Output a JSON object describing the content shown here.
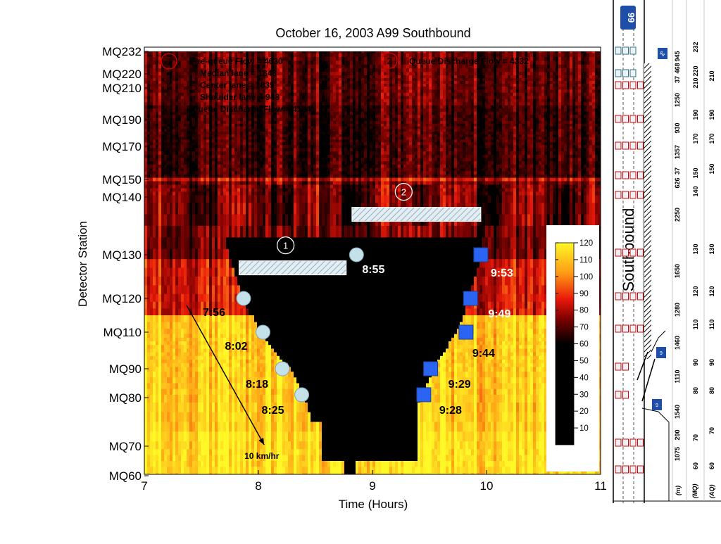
{
  "chart_data": {
    "type": "heatmap",
    "title": "October 16, 2003 A99 Southbound",
    "xlabel": "Time (Hours)",
    "ylabel": "Detector Station",
    "xlim": [
      7,
      11
    ],
    "x_ticks": [
      7,
      8,
      9,
      10,
      11
    ],
    "y_ticks": [
      {
        "label": "MQ232",
        "pos": 232
      },
      {
        "label": "MQ220",
        "pos": 220
      },
      {
        "label": "MQ210",
        "pos": 210
      },
      {
        "label": "MQ190",
        "pos": 190
      },
      {
        "label": "MQ170",
        "pos": 170
      },
      {
        "label": "MQ150",
        "pos": 150
      },
      {
        "label": "MQ140",
        "pos": 140
      },
      {
        "label": "MQ130",
        "pos": 130
      },
      {
        "label": "MQ120",
        "pos": 120
      },
      {
        "label": "MQ110",
        "pos": 110
      },
      {
        "label": "MQ90",
        "pos": 90
      },
      {
        "label": "MQ80",
        "pos": 80
      },
      {
        "label": "MQ70",
        "pos": 70
      },
      {
        "label": "MQ60",
        "pos": 60
      }
    ],
    "colorbar": {
      "min": 0,
      "max": 120,
      "ticks": [
        10,
        20,
        30,
        40,
        50,
        60,
        70,
        80,
        90,
        100,
        110,
        120
      ]
    },
    "notes": {
      "marker1": "1",
      "marker2": "2",
      "pre_queue": "Pre-queue Flow = 4630",
      "median": "Median lane = 1848",
      "center": "Center lane = 1835",
      "shoulder": "Shoulder lane = 948",
      "qd1": "Queue Discharge Flow = 4134",
      "qd2": "Queue Discharge Flow = 4332",
      "speed": "10 km/hr"
    },
    "queue_onset": [
      {
        "time": 7.87,
        "station": 120,
        "label": "7:56"
      },
      {
        "time": 8.04,
        "station": 110,
        "label": "8:02"
      },
      {
        "time": 8.21,
        "station": 90,
        "label": "8:18"
      },
      {
        "time": 8.38,
        "station": 81,
        "label": "8:25"
      },
      {
        "time": 8.86,
        "station": 130,
        "label": "8:55"
      }
    ],
    "queue_discharge": [
      {
        "time": 9.45,
        "station": 81,
        "label": "9:28"
      },
      {
        "time": 9.51,
        "station": 90,
        "label": "9:29"
      },
      {
        "time": 9.82,
        "station": 110,
        "label": "9:44"
      },
      {
        "time": 9.86,
        "station": 120,
        "label": "9:49"
      },
      {
        "time": 9.95,
        "station": 130,
        "label": "9:53"
      }
    ],
    "bars": [
      {
        "x0": 7.83,
        "x1": 8.77,
        "station": 127,
        "label": "1"
      },
      {
        "x0": 8.82,
        "x1": 9.95,
        "station": 137,
        "label": "2"
      }
    ],
    "speed_arrow": {
      "from": [
        7.37,
        118
      ],
      "to": [
        8.05,
        70
      ]
    }
  },
  "side_panel": {
    "route": "99",
    "direction": "Southbound",
    "col_m": "(m)",
    "col_mq": "(MQ)",
    "col_aq": "(AQ)",
    "distances": [
      "945",
      "468",
      "37",
      "1250",
      "930",
      "1357",
      "37",
      "626",
      "2250",
      "1650",
      "1280",
      "1460",
      "1110",
      "1540",
      "290",
      "1075"
    ],
    "mq_labels": [
      "232",
      "220",
      "210",
      "190",
      "170",
      "150",
      "140",
      "130",
      "120",
      "110",
      "90",
      "80",
      "70",
      "60"
    ],
    "aq_labels": [
      "210",
      "190",
      "170",
      "150",
      "130",
      "120",
      "110",
      "90",
      "80",
      "70",
      "60"
    ],
    "small_signs": [
      "94",
      "9"
    ]
  }
}
